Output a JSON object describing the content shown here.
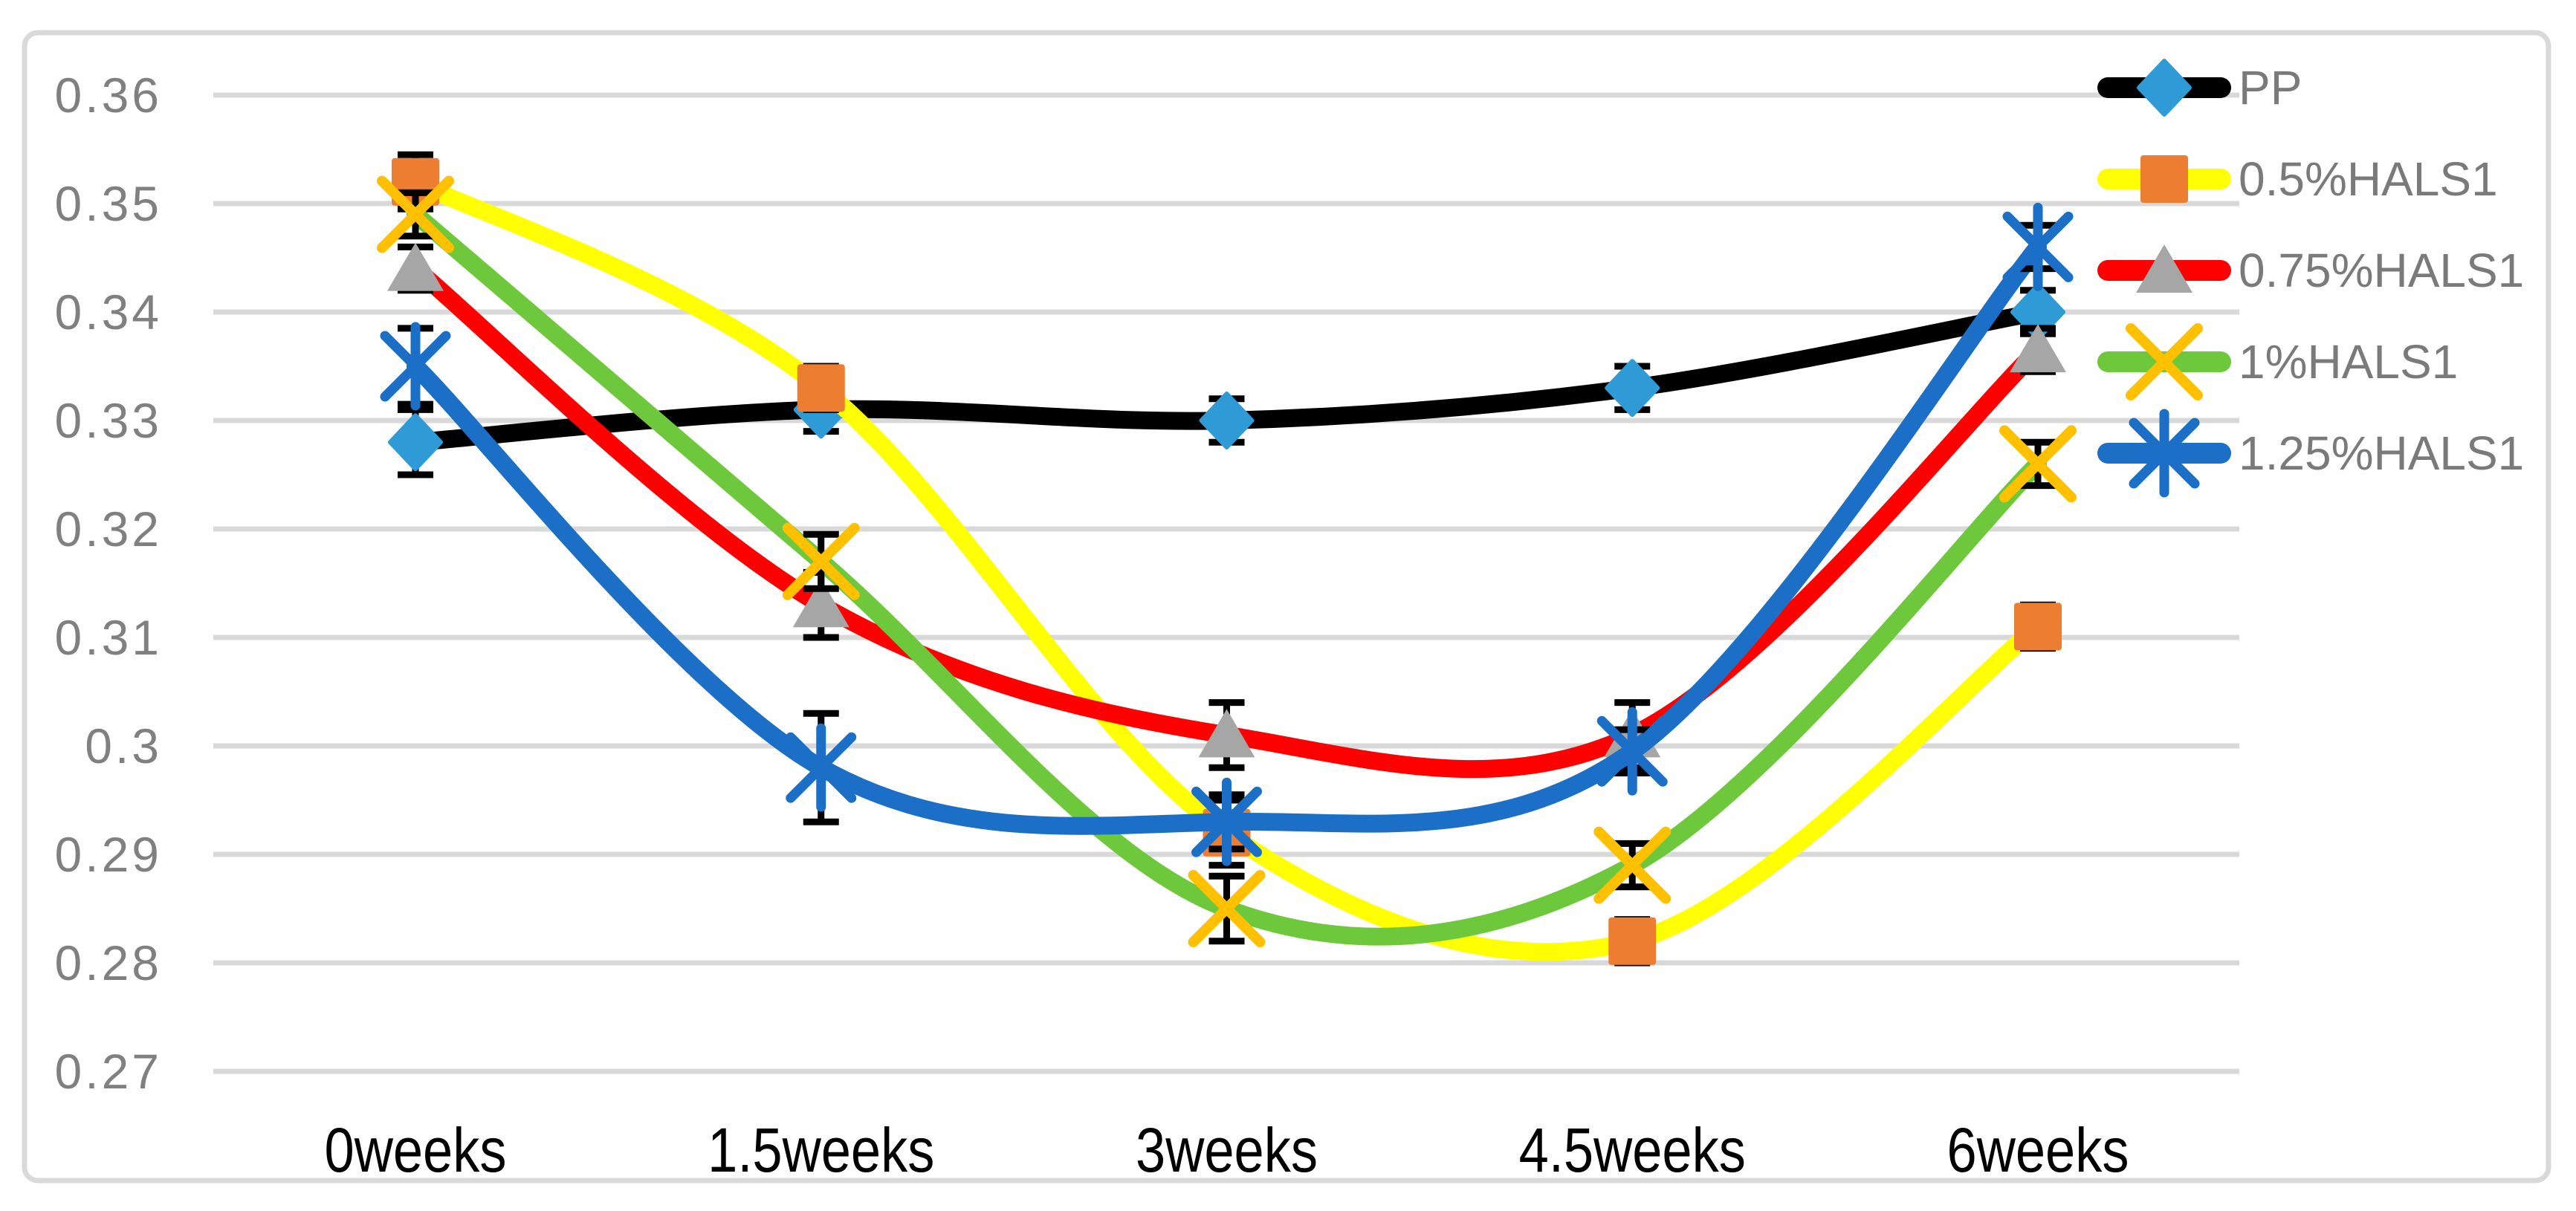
{
  "figure": {
    "background_color": "#FFFFFF",
    "border_color": "#D9D9D9"
  },
  "chart_data": {
    "type": "line",
    "smoothed": true,
    "title": "",
    "xlabel": "",
    "ylabel": "",
    "grid": true,
    "gridline_color": "#D9D9D9",
    "error_bar_color": "#000000",
    "y_axis_text_color": "#808080",
    "x_axis_text_color": "#000000",
    "ylim": [
      0.265,
      0.366
    ],
    "y_tick_values": [
      0.36,
      0.35,
      0.34,
      0.33,
      0.32,
      0.31,
      0.3,
      0.29,
      0.28,
      0.27
    ],
    "y_ticks": [
      "0.36",
      "0.35",
      "0.34",
      "0.33",
      "0.32",
      "0.31",
      "0.3",
      "0.29",
      "0.28",
      "0.27"
    ],
    "categories": [
      "0weeks",
      "1.5weeks",
      "3weeks",
      "4.5weeks",
      "6weeks"
    ],
    "legend": {
      "position": "top-right",
      "text_color": "#7A7A7A",
      "entries": [
        "PP",
        "0.5%HALS1",
        "0.75%HALS1",
        "1%HALS1",
        "1.25%HALS1"
      ]
    },
    "series": [
      {
        "name": "PP",
        "line_color": "#000000",
        "marker": "diamond",
        "marker_color": "#2E9BD6",
        "values": [
          0.328,
          0.331,
          0.33,
          0.333,
          0.34
        ],
        "errors": [
          0.003,
          0.002,
          0.002,
          0.002,
          0.002
        ]
      },
      {
        "name": "0.5%HALS1",
        "line_color": "#FFFF00",
        "marker": "square",
        "marker_color": "#ED7D31",
        "values": [
          0.352,
          0.333,
          0.292,
          0.282,
          0.311
        ],
        "errors": [
          0.0025,
          0.002,
          0.003,
          0.002,
          0.002
        ]
      },
      {
        "name": "0.75%HALS1",
        "line_color": "#FF0000",
        "marker": "triangle",
        "marker_color": "#A6A6A6",
        "values": [
          0.344,
          0.313,
          0.301,
          0.301,
          0.3365
        ],
        "errors": [
          0.002,
          0.003,
          0.003,
          0.003,
          0.002
        ]
      },
      {
        "name": "1%HALS1",
        "line_color": "#6EC83C",
        "marker": "x",
        "marker_color": "#FFC000",
        "values": [
          0.349,
          0.317,
          0.285,
          0.289,
          0.326
        ],
        "errors": [
          0.002,
          0.0025,
          0.003,
          0.002,
          0.002
        ]
      },
      {
        "name": "1.25%HALS1",
        "line_color": "#1B6FC7",
        "marker": "asterisk",
        "marker_color": "#1B6FC7",
        "values": [
          0.335,
          0.298,
          0.293,
          0.2995,
          0.346
        ],
        "errors": [
          0.0035,
          0.005,
          0.0025,
          0.002,
          0.002
        ]
      }
    ]
  }
}
